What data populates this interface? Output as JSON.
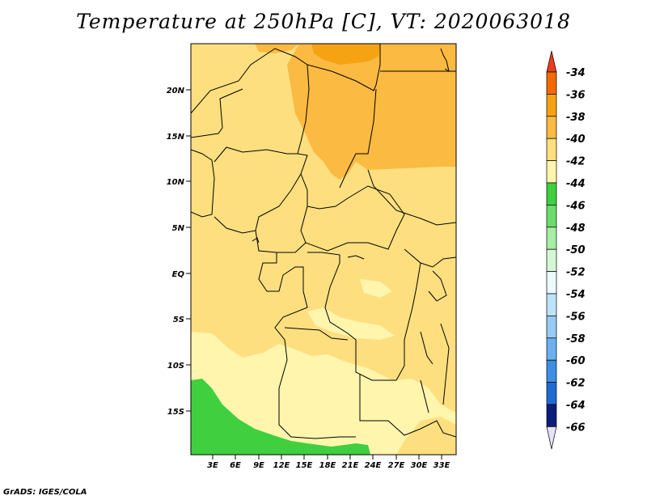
{
  "title": "Temperature at 250hPa [C], VT: 2020063018",
  "credit": "GrADS: IGES/COLA",
  "map": {
    "variable": "Temperature",
    "level": "250hPa",
    "unit": "C",
    "valid_time": "2020063018",
    "lat_labels": [
      "20N",
      "15N",
      "10N",
      "5N",
      "EQ",
      "5S",
      "10S",
      "15S"
    ],
    "lon_labels": [
      "3E",
      "6E",
      "9E",
      "12E",
      "15E",
      "18E",
      "21E",
      "24E",
      "27E",
      "30E",
      "33E"
    ],
    "regions": [
      {
        "name": "band-minus-42",
        "color": "#fff5ad"
      },
      {
        "name": "band-minus-40",
        "color": "#fddf7f"
      },
      {
        "name": "band-minus-38",
        "color": "#fbba41"
      },
      {
        "name": "band-minus-36",
        "color": "#f6a313"
      },
      {
        "name": "band-minus-44",
        "color": "#3fcf3f"
      }
    ]
  },
  "colorbar": {
    "levels": [
      "-34",
      "-36",
      "-38",
      "-40",
      "-42",
      "-44",
      "-46",
      "-48",
      "-50",
      "-52",
      "-54",
      "-56",
      "-58",
      "-60",
      "-62",
      "-64",
      "-66"
    ],
    "colors": [
      "#ef3b1b",
      "#f36a00",
      "#f6a313",
      "#fbba41",
      "#fddf7f",
      "#fff5ad",
      "#3fcf3f",
      "#6bdc6b",
      "#a6eda6",
      "#d6f7d6",
      "#eafaff",
      "#bde3fb",
      "#96cbf5",
      "#6cb0ee",
      "#3d8fe4",
      "#1f6bd6",
      "#1048b8",
      "#0a1f7a",
      "#e6e2f3"
    ]
  }
}
